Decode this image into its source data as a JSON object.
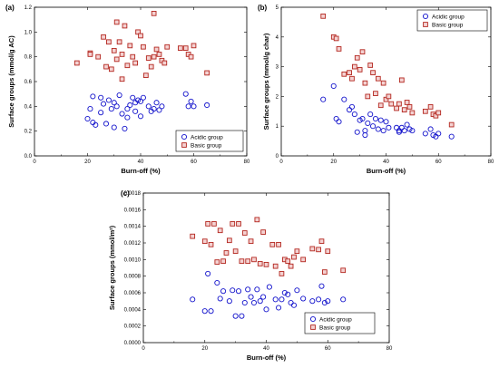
{
  "colors": {
    "acidic": "#1414cc",
    "basic": "#b3261e",
    "basic_fill": "#f4d2d2"
  },
  "chart_data": [
    {
      "type": "scatter",
      "panel": "(a)",
      "xlabel": "Burn-off (%)",
      "ylabel": "Surface groups (mmol/g AC)",
      "xlim": [
        0,
        80
      ],
      "ylim": [
        0,
        1.2
      ],
      "xticks": [
        "0",
        "20",
        "40",
        "60",
        "80"
      ],
      "yticks": [
        "0.0",
        "0.2",
        "0.4",
        "0.6",
        "0.8",
        "1.0",
        "1.2"
      ],
      "legend_position": "bottom-right",
      "series": [
        {
          "name": "Acidic group",
          "marker": "circle",
          "x": [
            20,
            21,
            22,
            22,
            23,
            25,
            25,
            26,
            27,
            28,
            29,
            30,
            30,
            31,
            32,
            33,
            34,
            35,
            35,
            36,
            37,
            38,
            38,
            39,
            40,
            40,
            41,
            43,
            44,
            45,
            46,
            47,
            48,
            57,
            58,
            59,
            60,
            65
          ],
          "y": [
            0.3,
            0.38,
            0.48,
            0.27,
            0.25,
            0.35,
            0.47,
            0.42,
            0.26,
            0.45,
            0.38,
            0.43,
            0.23,
            0.4,
            0.49,
            0.34,
            0.22,
            0.38,
            0.31,
            0.41,
            0.47,
            0.43,
            0.36,
            0.45,
            0.32,
            0.44,
            0.47,
            0.4,
            0.36,
            0.38,
            0.43,
            0.37,
            0.4,
            0.5,
            0.4,
            0.44,
            0.4,
            0.41
          ]
        },
        {
          "name": "Basic group",
          "marker": "square",
          "x": [
            16,
            21,
            21,
            24,
            26,
            27,
            28,
            29,
            30,
            31,
            31,
            32,
            33,
            33,
            34,
            35,
            36,
            37,
            38,
            39,
            40,
            41,
            42,
            43,
            44,
            45,
            45,
            46,
            47,
            48,
            49,
            50,
            55,
            57,
            58,
            59,
            60,
            65
          ],
          "y": [
            0.75,
            0.83,
            0.82,
            0.8,
            0.96,
            0.72,
            0.92,
            0.7,
            0.85,
            0.78,
            1.08,
            0.92,
            0.82,
            0.62,
            1.05,
            0.73,
            0.89,
            0.8,
            0.75,
            1.0,
            0.97,
            0.88,
            0.65,
            0.79,
            0.72,
            1.15,
            0.8,
            0.86,
            0.82,
            0.77,
            0.75,
            0.88,
            0.87,
            0.87,
            0.82,
            0.8,
            0.89,
            0.67
          ]
        }
      ]
    },
    {
      "type": "scatter",
      "panel": "(b)",
      "xlabel": "Burn-off (%)",
      "ylabel": "Surface groups (mmol/g char)",
      "xlim": [
        0,
        80
      ],
      "ylim": [
        0,
        5
      ],
      "xticks": [
        "0",
        "20",
        "40",
        "60",
        "80"
      ],
      "yticks": [
        "0",
        "1",
        "2",
        "3",
        "4",
        "5"
      ],
      "legend_position": "top-right",
      "series": [
        {
          "name": "Acidic group",
          "marker": "circle",
          "x": [
            16,
            20,
            21,
            22,
            24,
            26,
            27,
            28,
            29,
            30,
            31,
            32,
            32,
            33,
            34,
            35,
            36,
            37,
            38,
            39,
            40,
            41,
            44,
            45,
            45,
            46,
            47,
            48,
            49,
            50,
            55,
            57,
            58,
            59,
            60,
            65
          ],
          "y": [
            1.9,
            2.35,
            1.25,
            1.15,
            1.9,
            1.55,
            1.65,
            1.4,
            0.8,
            1.2,
            1.25,
            0.85,
            0.7,
            1.1,
            1.4,
            1.0,
            1.25,
            0.9,
            1.2,
            0.85,
            1.15,
            0.95,
            0.95,
            0.85,
            0.8,
            0.95,
            0.85,
            1.05,
            0.9,
            0.85,
            0.75,
            0.9,
            0.7,
            0.65,
            0.75,
            0.65
          ]
        },
        {
          "name": "Basic group",
          "marker": "square",
          "x": [
            16,
            20,
            21,
            22,
            24,
            26,
            27,
            28,
            29,
            30,
            31,
            32,
            33,
            34,
            35,
            36,
            37,
            38,
            39,
            40,
            41,
            42,
            44,
            45,
            46,
            47,
            48,
            49,
            50,
            55,
            57,
            58,
            59,
            60,
            65
          ],
          "y": [
            4.7,
            4.0,
            3.95,
            3.6,
            2.75,
            2.8,
            2.6,
            3.0,
            3.3,
            2.9,
            3.5,
            2.45,
            2.0,
            3.05,
            2.8,
            2.1,
            2.6,
            1.7,
            2.45,
            1.9,
            2.0,
            1.75,
            1.6,
            1.75,
            2.55,
            1.55,
            1.8,
            1.65,
            1.45,
            1.5,
            1.65,
            1.4,
            1.35,
            1.45,
            1.05
          ]
        }
      ]
    },
    {
      "type": "scatter",
      "panel": "(c)",
      "xlabel": "Burn-off (%)",
      "ylabel": "Surface groups (mmol/m²)",
      "xlim": [
        0,
        80
      ],
      "ylim": [
        0,
        0.0018
      ],
      "xticks": [
        "0",
        "20",
        "40",
        "60",
        "80"
      ],
      "yticks": [
        "0.0000",
        "0.0002",
        "0.0004",
        "0.0006",
        "0.0008",
        "0.0010",
        "0.0012",
        "0.0014",
        "0.0016",
        "0.0018"
      ],
      "legend_position": "bottom-right",
      "series": [
        {
          "name": "Acidic group",
          "marker": "circle",
          "x": [
            16,
            20,
            21,
            22,
            24,
            25,
            26,
            28,
            29,
            30,
            31,
            32,
            33,
            34,
            35,
            36,
            37,
            38,
            39,
            40,
            41,
            43,
            44,
            45,
            46,
            47,
            48,
            49,
            50,
            52,
            55,
            57,
            58,
            59,
            60,
            65
          ],
          "y": [
            0.00052,
            0.00038,
            0.00083,
            0.00038,
            0.00072,
            0.00053,
            0.00062,
            0.0005,
            0.00063,
            0.00032,
            0.00062,
            0.00032,
            0.00048,
            0.00064,
            0.00055,
            0.00048,
            0.00064,
            0.0005,
            0.00055,
            0.0004,
            0.00067,
            0.00052,
            0.00042,
            0.00052,
            0.0006,
            0.00058,
            0.00048,
            0.00045,
            0.00063,
            0.00053,
            0.0005,
            0.00052,
            0.00068,
            0.00048,
            0.0005,
            0.00052
          ]
        },
        {
          "name": "Basic group",
          "marker": "square",
          "x": [
            16,
            20,
            21,
            22,
            23,
            24,
            25,
            26,
            27,
            28,
            29,
            30,
            31,
            32,
            33,
            34,
            35,
            36,
            37,
            38,
            39,
            40,
            42,
            43,
            44,
            45,
            46,
            47,
            48,
            49,
            50,
            52,
            55,
            57,
            58,
            59,
            60,
            65
          ],
          "y": [
            0.00128,
            0.00122,
            0.00143,
            0.00118,
            0.00143,
            0.00097,
            0.00135,
            0.00098,
            0.00108,
            0.00123,
            0.00143,
            0.0011,
            0.00143,
            0.00098,
            0.00132,
            0.00098,
            0.00122,
            0.001,
            0.00148,
            0.00095,
            0.00133,
            0.00094,
            0.00118,
            0.00092,
            0.00118,
            0.00083,
            0.001,
            0.00098,
            0.00092,
            0.00103,
            0.0011,
            0.001,
            0.00113,
            0.00112,
            0.00122,
            0.00085,
            0.0011,
            0.00087
          ]
        }
      ]
    }
  ]
}
